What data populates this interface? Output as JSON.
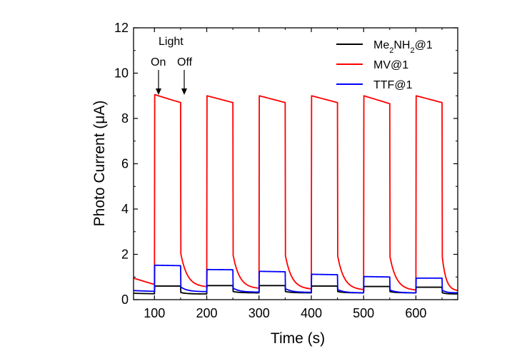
{
  "chart_data": {
    "type": "line",
    "xlabel": "Time (s)",
    "ylabel": "Photo Current (μA)",
    "xlim": [
      60,
      680
    ],
    "ylim": [
      0,
      12
    ],
    "xticks": [
      100,
      200,
      300,
      400,
      500,
      600
    ],
    "yticks": [
      0,
      2,
      4,
      6,
      8,
      10,
      12
    ],
    "legend_position": "top-right",
    "annotations": {
      "light": "Light",
      "on": "On",
      "off": "Off"
    },
    "series": [
      {
        "name": "Me2NH2@1",
        "color": "#000000",
        "dark_start": 0.28,
        "cycles": [
          {
            "on": 100,
            "off": 150,
            "peak": 0.6,
            "end": 0.6,
            "dark": 0.25
          },
          {
            "on": 200,
            "off": 250,
            "peak": 0.62,
            "end": 0.62,
            "dark": 0.3
          },
          {
            "on": 300,
            "off": 350,
            "peak": 0.62,
            "end": 0.62,
            "dark": 0.3
          },
          {
            "on": 400,
            "off": 450,
            "peak": 0.6,
            "end": 0.6,
            "dark": 0.3
          },
          {
            "on": 500,
            "off": 550,
            "peak": 0.58,
            "end": 0.58,
            "dark": 0.3
          },
          {
            "on": 600,
            "off": 650,
            "peak": 0.55,
            "end": 0.55,
            "dark": 0.25
          }
        ]
      },
      {
        "name": "MV@1",
        "color": "#ff0000",
        "dark_start": 0.95,
        "cycles": [
          {
            "on": 100,
            "off": 150,
            "peak": 9.05,
            "end": 8.7,
            "dark": 0.55
          },
          {
            "on": 200,
            "off": 250,
            "peak": 9.0,
            "end": 8.7,
            "dark": 0.48
          },
          {
            "on": 300,
            "off": 350,
            "peak": 9.0,
            "end": 8.7,
            "dark": 0.45
          },
          {
            "on": 400,
            "off": 450,
            "peak": 9.0,
            "end": 8.7,
            "dark": 0.42
          },
          {
            "on": 500,
            "off": 550,
            "peak": 9.0,
            "end": 8.65,
            "dark": 0.4
          },
          {
            "on": 600,
            "off": 650,
            "peak": 9.0,
            "end": 8.7,
            "dark": 0.38
          }
        ]
      },
      {
        "name": "TTF@1",
        "color": "#0000ff",
        "dark_start": 0.4,
        "cycles": [
          {
            "on": 100,
            "off": 150,
            "peak": 1.52,
            "end": 1.5,
            "dark": 0.35
          },
          {
            "on": 200,
            "off": 250,
            "peak": 1.33,
            "end": 1.32,
            "dark": 0.33
          },
          {
            "on": 300,
            "off": 350,
            "peak": 1.25,
            "end": 1.23,
            "dark": 0.32
          },
          {
            "on": 400,
            "off": 450,
            "peak": 1.12,
            "end": 1.1,
            "dark": 0.3
          },
          {
            "on": 500,
            "off": 550,
            "peak": 1.02,
            "end": 1.0,
            "dark": 0.3
          },
          {
            "on": 600,
            "off": 650,
            "peak": 0.95,
            "end": 0.95,
            "dark": 0.3
          }
        ]
      }
    ]
  }
}
